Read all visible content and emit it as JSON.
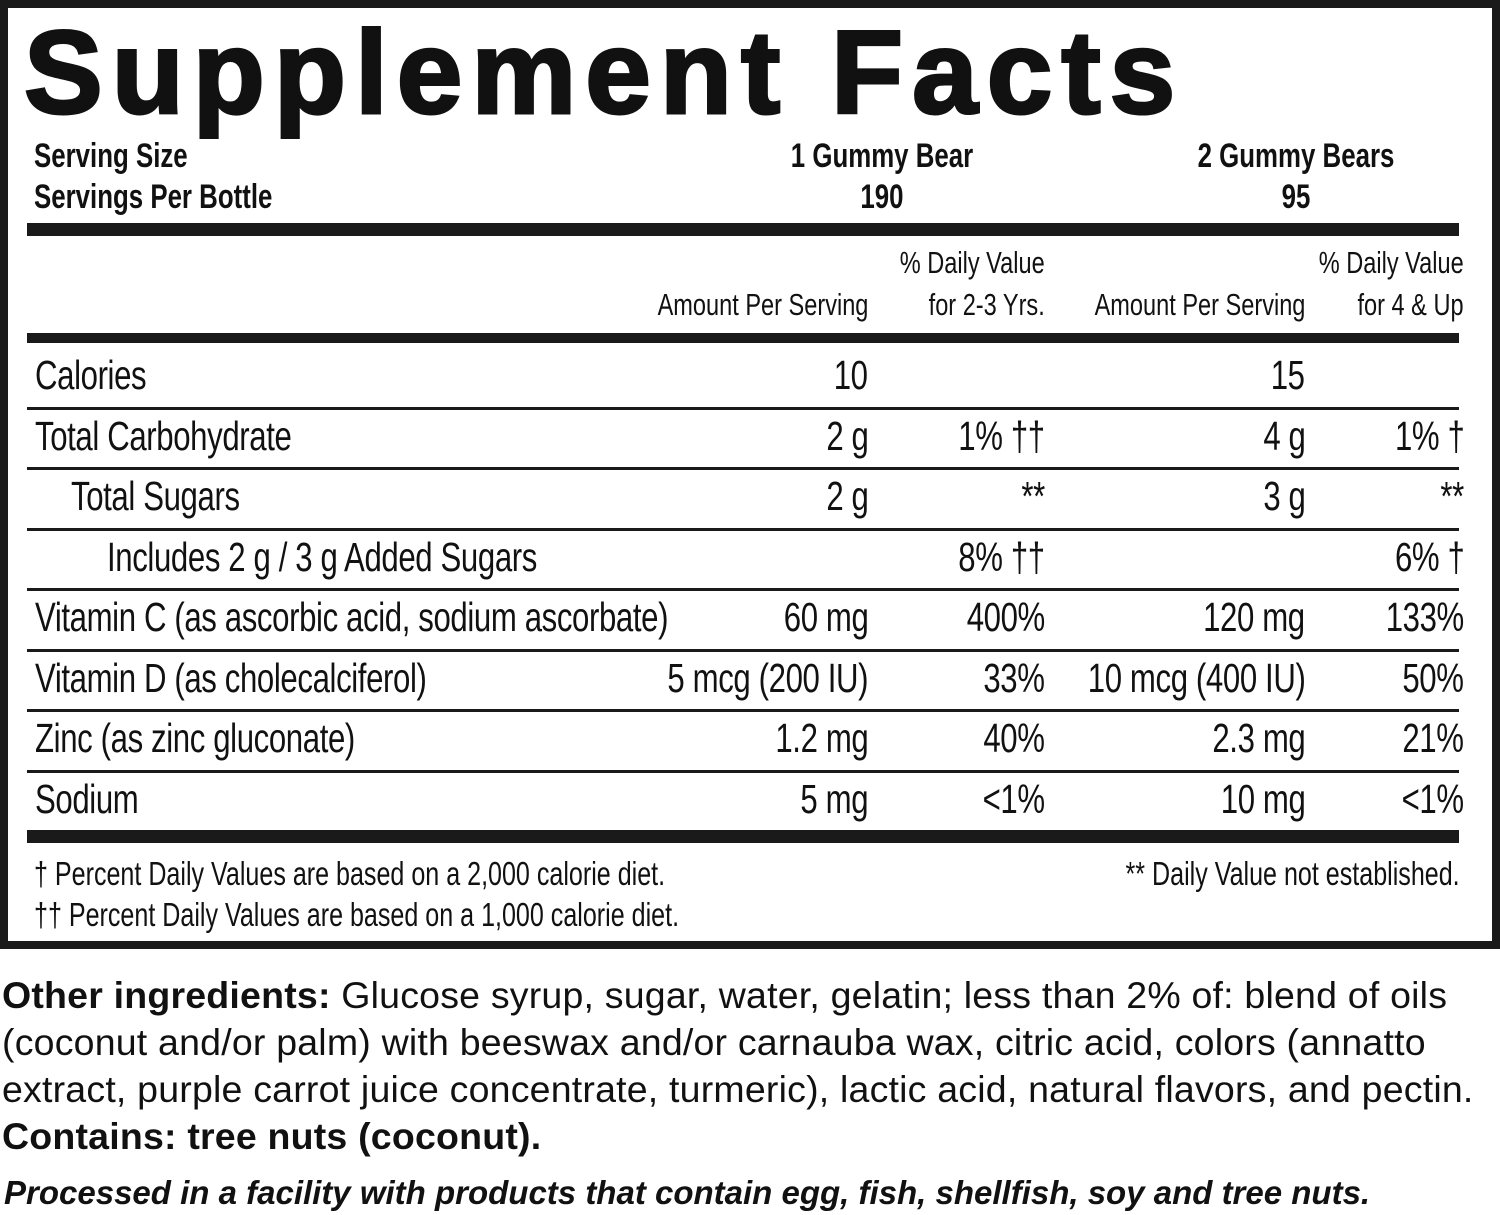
{
  "title": "Supplement Facts",
  "serving": {
    "size_label": "Serving Size",
    "per_bottle_label": "Servings Per Bottle",
    "col1_size": "1 Gummy Bear",
    "col1_count": "190",
    "col2_size": "2 Gummy Bears",
    "col2_count": "95"
  },
  "columns": {
    "amount1": "Amount Per Serving",
    "dv1_line1": "% Daily Value",
    "dv1_line2": "for 2-3 Yrs.",
    "amount2": "Amount Per Serving",
    "dv2_line1": "% Daily Value",
    "dv2_line2": "for 4 & Up"
  },
  "rows": [
    {
      "label": "Calories",
      "indent": 0,
      "amt1": "10",
      "dv1": "",
      "amt2": "15",
      "dv2": ""
    },
    {
      "label": "Total Carbohydrate",
      "indent": 0,
      "amt1": "2 g",
      "dv1": "1% ††",
      "amt2": "4 g",
      "dv2": "1% †"
    },
    {
      "label": "Total Sugars",
      "indent": 1,
      "amt1": "2 g",
      "dv1": "**",
      "amt2": "3 g",
      "dv2": "**"
    },
    {
      "label": "Includes 2 g / 3 g Added Sugars",
      "indent": 2,
      "amt1": "",
      "dv1": "8% ††",
      "amt2": "",
      "dv2": "6% †"
    },
    {
      "label": "Vitamin C (as ascorbic acid, sodium ascorbate)",
      "indent": 0,
      "amt1": "60 mg",
      "dv1": "400%",
      "amt2": "120 mg",
      "dv2": "133%"
    },
    {
      "label": "Vitamin D (as cholecalciferol)",
      "indent": 0,
      "amt1": "5 mcg (200 IU)",
      "dv1": "33%",
      "amt2": "10 mcg (400 IU)",
      "dv2": "50%"
    },
    {
      "label": "Zinc (as zinc gluconate)",
      "indent": 0,
      "amt1": "1.2 mg",
      "dv1": "40%",
      "amt2": "2.3 mg",
      "dv2": "21%"
    },
    {
      "label": "Sodium",
      "indent": 0,
      "amt1": "5 mg",
      "dv1": "<1%",
      "amt2": "10 mg",
      "dv2": "<1%"
    }
  ],
  "footnotes": {
    "dagger": "† Percent Daily Values are based on a 2,000 calorie diet.",
    "double_dagger": "†† Percent Daily Values are based on a 1,000 calorie diet.",
    "not_established": "** Daily Value not established."
  },
  "ingredients": {
    "label": "Other ingredients:",
    "text": " Glucose syrup, sugar, water, gelatin; less than 2% of: blend of oils (coconut and/or palm) with beeswax and/or carnauba wax, citric acid, colors (annatto extract, purple carrot juice concentrate, turmeric), lactic acid, natural flavors, and pectin. ",
    "contains": "Contains: tree nuts (coconut)."
  },
  "processed_note": "Processed in a facility with products that contain egg, fish,  shellfish, soy and tree nuts."
}
